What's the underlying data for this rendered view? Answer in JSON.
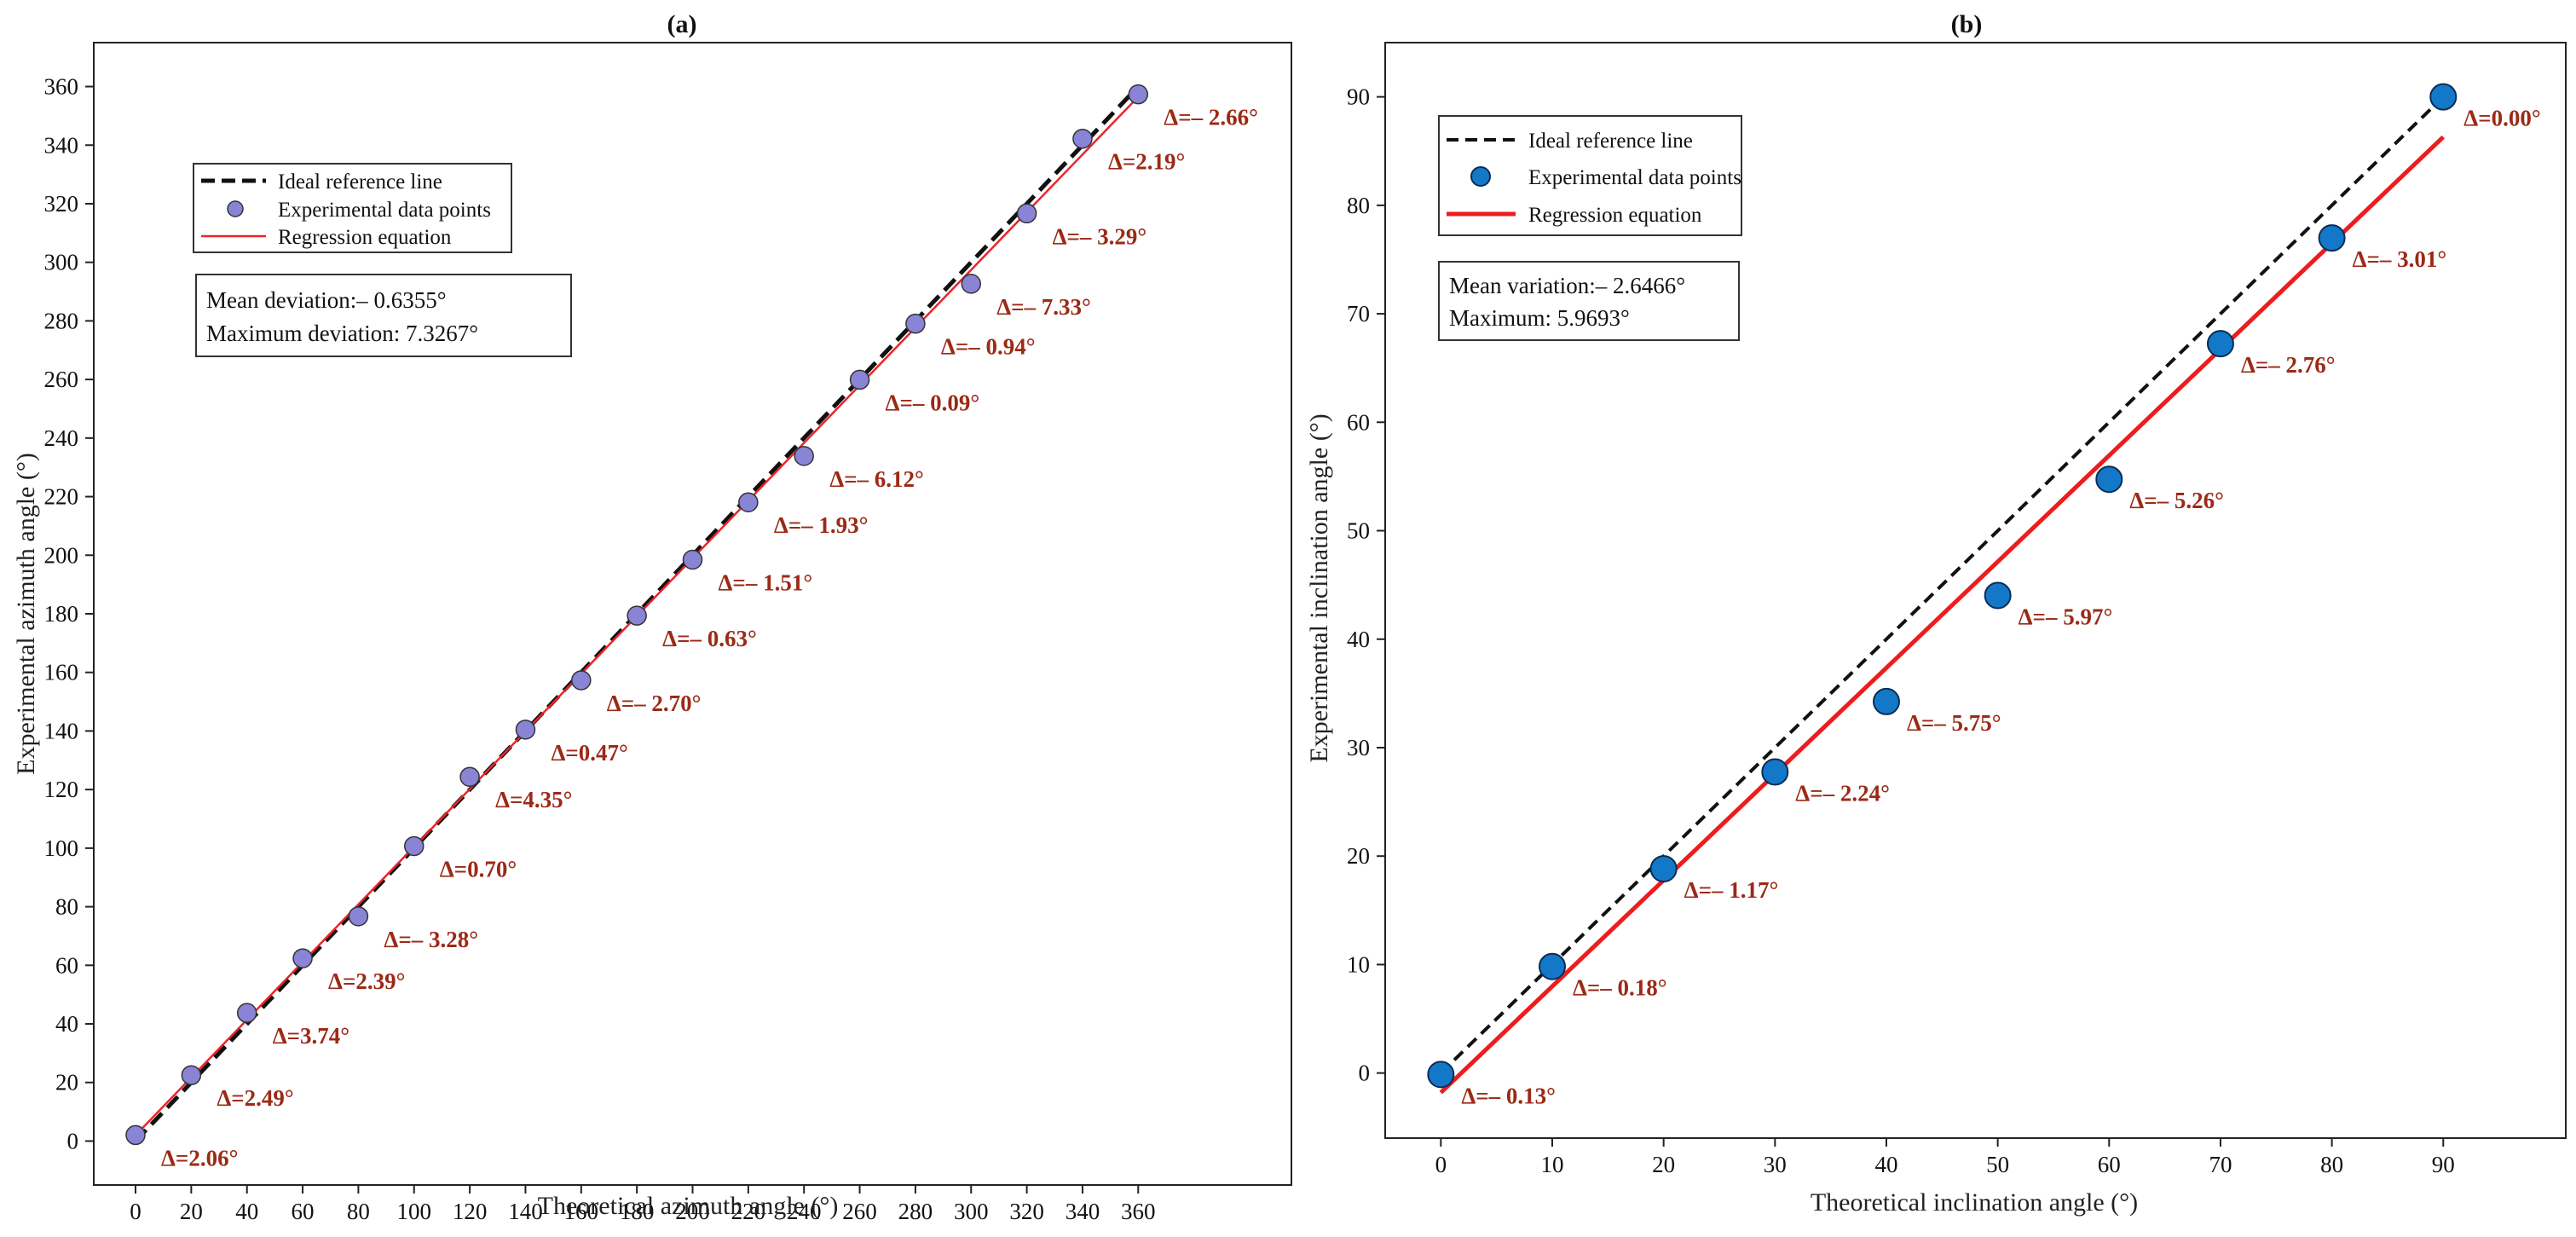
{
  "chart_data": [
    {
      "type": "scatter",
      "title": "(a)",
      "xlabel": "Theoretical azimuth angle (°)",
      "ylabel": "Experimental azimuth angle (°)",
      "xlim": [
        -15,
        415
      ],
      "ylim": [
        -15,
        375
      ],
      "x_ticks": [
        0,
        20,
        40,
        60,
        80,
        100,
        120,
        140,
        160,
        180,
        200,
        220,
        240,
        260,
        280,
        300,
        320,
        340,
        360
      ],
      "y_ticks": [
        0,
        20,
        40,
        60,
        80,
        100,
        120,
        140,
        160,
        180,
        200,
        220,
        240,
        260,
        280,
        300,
        320,
        340,
        360
      ],
      "legend_position": "upper-left",
      "legend": {
        "ideal": "Ideal reference line",
        "points": "Experimental data points",
        "regression": "Regression equation"
      },
      "stats": [
        "Mean deviation:– 0.6355°",
        "Maximum deviation: 7.3267°"
      ],
      "ideal_line": {
        "x": [
          0,
          360
        ],
        "y": [
          0,
          360
        ]
      },
      "regression_line": {
        "x": [
          0,
          360
        ],
        "y": [
          2.0,
          356.5
        ]
      },
      "series": [
        {
          "kind": "points",
          "x": [
            0,
            20,
            40,
            60,
            80,
            100,
            120,
            140,
            160,
            180,
            200,
            220,
            240,
            260,
            280,
            300,
            320,
            340,
            360
          ],
          "y": [
            2.06,
            22.49,
            43.74,
            62.39,
            76.72,
            100.7,
            124.35,
            140.47,
            157.3,
            179.37,
            198.49,
            218.07,
            233.88,
            259.91,
            279.06,
            292.67,
            316.71,
            342.19,
            357.34
          ]
        }
      ],
      "annotations": [
        "Δ=2.06°",
        "Δ=2.49°",
        "Δ=3.74°",
        "Δ=2.39°",
        "Δ=– 3.28°",
        "Δ=0.70°",
        "Δ=4.35°",
        "Δ=0.47°",
        "Δ=– 2.70°",
        "Δ=– 0.63°",
        "Δ=– 1.51°",
        "Δ=– 1.93°",
        "Δ=– 6.12°",
        "Δ=– 0.09°",
        "Δ=– 0.94°",
        "Δ=– 7.33°",
        "Δ=– 3.29°",
        "Δ=2.19°",
        "Δ=– 2.66°"
      ],
      "colors": {
        "points": "#8a84d6",
        "regression": "#e8262b",
        "ideal": "#111111",
        "annotation": "#9b2a16"
      }
    },
    {
      "type": "scatter",
      "title": "(b)",
      "xlabel": "Theoretical inclination angle (°)",
      "ylabel": "Experimental inclination angle (°)",
      "xlim": [
        -5,
        101
      ],
      "ylim": [
        -6,
        95
      ],
      "x_ticks": [
        0,
        10,
        20,
        30,
        40,
        50,
        60,
        70,
        80,
        90
      ],
      "y_ticks": [
        0,
        10,
        20,
        30,
        40,
        50,
        60,
        70,
        80,
        90
      ],
      "legend_position": "upper-left",
      "legend": {
        "ideal": "Ideal reference line",
        "points": "Experimental data points",
        "regression": "Regression equation"
      },
      "stats": [
        "Mean variation:– 2.6466°",
        "Maximum: 5.9693°"
      ],
      "ideal_line": {
        "x": [
          0,
          90
        ],
        "y": [
          0,
          90
        ]
      },
      "regression_line": {
        "x": [
          0,
          90
        ],
        "y": [
          -1.8,
          86.3
        ]
      },
      "series": [
        {
          "kind": "points",
          "x": [
            0,
            10,
            20,
            30,
            40,
            50,
            60,
            70,
            80,
            90
          ],
          "y": [
            -0.13,
            9.82,
            18.83,
            27.76,
            34.25,
            44.03,
            54.74,
            67.24,
            76.99,
            90.0
          ]
        }
      ],
      "annotations": [
        "Δ=– 0.13°",
        "Δ=– 0.18°",
        "Δ=– 1.17°",
        "Δ=– 2.24°",
        "Δ=– 5.75°",
        "Δ=– 5.97°",
        "Δ=– 5.26°",
        "Δ=– 2.76°",
        "Δ=– 3.01°",
        "Δ=0.00°"
      ],
      "colors": {
        "points": "#1478c8",
        "regression": "#ee1c1c",
        "ideal": "#111111",
        "annotation": "#9b2a16"
      }
    }
  ]
}
